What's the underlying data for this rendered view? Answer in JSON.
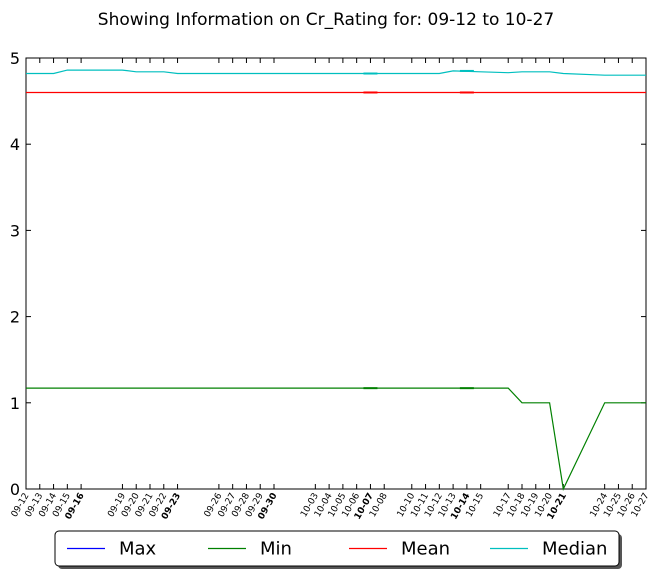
{
  "chart_data": {
    "type": "line",
    "title": "Showing Information on Cr_Rating for: 09-12 to 10-27",
    "xlabel": "",
    "ylabel": "",
    "ylim": [
      0,
      5
    ],
    "yticks": [
      "0",
      "1",
      "2",
      "3",
      "4",
      "5"
    ],
    "grid": false,
    "legend_position": "bottom",
    "x_ticks": [
      {
        "label": "09-12",
        "day": 0
      },
      {
        "label": "09-13",
        "day": 1
      },
      {
        "label": "09-14",
        "day": 2
      },
      {
        "label": "09-15",
        "day": 3
      },
      {
        "label": "09-16",
        "day": 4,
        "bold": true
      },
      {
        "label": "09-19",
        "day": 7
      },
      {
        "label": "09-20",
        "day": 8
      },
      {
        "label": "09-21",
        "day": 9
      },
      {
        "label": "09-22",
        "day": 10
      },
      {
        "label": "09-23",
        "day": 11,
        "bold": true
      },
      {
        "label": "09-26",
        "day": 14
      },
      {
        "label": "09-27",
        "day": 15
      },
      {
        "label": "09-28",
        "day": 16
      },
      {
        "label": "09-29",
        "day": 17
      },
      {
        "label": "09-30",
        "day": 18,
        "bold": true
      },
      {
        "label": "10-03",
        "day": 21
      },
      {
        "label": "10-04",
        "day": 22
      },
      {
        "label": "10-05",
        "day": 23
      },
      {
        "label": "10-06",
        "day": 24
      },
      {
        "label": "10-07",
        "day": 25,
        "bold": true
      },
      {
        "label": "10-08",
        "day": 26
      },
      {
        "label": "10-10",
        "day": 28
      },
      {
        "label": "10-11",
        "day": 29
      },
      {
        "label": "10-12",
        "day": 30
      },
      {
        "label": "10-13",
        "day": 31
      },
      {
        "label": "10-14",
        "day": 32,
        "bold": true
      },
      {
        "label": "10-15",
        "day": 33
      },
      {
        "label": "10-17",
        "day": 35
      },
      {
        "label": "10-18",
        "day": 36
      },
      {
        "label": "10-19",
        "day": 37
      },
      {
        "label": "10-20",
        "day": 38
      },
      {
        "label": "10-21",
        "day": 39,
        "bold": true
      },
      {
        "label": "10-24",
        "day": 42
      },
      {
        "label": "10-25",
        "day": 43
      },
      {
        "label": "10-26",
        "day": 44
      },
      {
        "label": "10-27",
        "day": 45
      }
    ],
    "series": [
      {
        "name": "Max",
        "color": "#0000ff",
        "points": []
      },
      {
        "name": "Min",
        "color": "#008000",
        "points": [
          {
            "day": 0,
            "y": 1.17
          },
          {
            "day": 25,
            "y": 1.17
          },
          {
            "day": 33,
            "y": 1.17
          },
          {
            "day": 35,
            "y": 1.17
          },
          {
            "day": 36,
            "y": 1.0
          },
          {
            "day": 38,
            "y": 1.0
          },
          {
            "day": 39,
            "y": 0.0
          },
          {
            "day": 42,
            "y": 1.0
          },
          {
            "day": 45,
            "y": 1.0
          }
        ]
      },
      {
        "name": "Mean",
        "color": "#ff0000",
        "points": [
          {
            "day": 0,
            "y": 4.6
          },
          {
            "day": 45,
            "y": 4.6
          }
        ]
      },
      {
        "name": "Median",
        "color": "#00bfbf",
        "points": [
          {
            "day": 0,
            "y": 4.82
          },
          {
            "day": 2,
            "y": 4.82
          },
          {
            "day": 3,
            "y": 4.86
          },
          {
            "day": 7,
            "y": 4.86
          },
          {
            "day": 8,
            "y": 4.84
          },
          {
            "day": 10,
            "y": 4.84
          },
          {
            "day": 11,
            "y": 4.82
          },
          {
            "day": 30,
            "y": 4.82
          },
          {
            "day": 31,
            "y": 4.85
          },
          {
            "day": 33,
            "y": 4.84
          },
          {
            "day": 35,
            "y": 4.83
          },
          {
            "day": 36,
            "y": 4.84
          },
          {
            "day": 38,
            "y": 4.84
          },
          {
            "day": 39,
            "y": 4.82
          },
          {
            "day": 42,
            "y": 4.8
          },
          {
            "day": 45,
            "y": 4.8
          }
        ]
      }
    ],
    "markers": [
      {
        "series": "Min",
        "day": 25,
        "y": 1.17
      },
      {
        "series": "Min",
        "day": 32,
        "y": 1.17
      },
      {
        "series": "Mean",
        "day": 25,
        "y": 4.6
      },
      {
        "series": "Mean",
        "day": 32,
        "y": 4.6
      },
      {
        "series": "Median",
        "day": 25,
        "y": 4.82
      },
      {
        "series": "Median",
        "day": 32,
        "y": 4.85
      }
    ]
  }
}
